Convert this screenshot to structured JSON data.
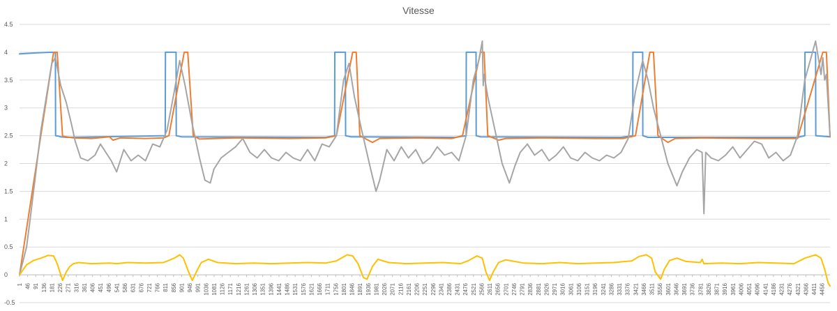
{
  "chart_data": {
    "type": "line",
    "title": "Vitesse",
    "xlabel": "",
    "ylabel": "",
    "ylim": [
      -0.5,
      4.5
    ],
    "xlim": [
      1,
      4500
    ],
    "y_ticks": [
      "-0.5",
      "0",
      "0.5",
      "1",
      "1.5",
      "2",
      "2.5",
      "3",
      "3.5",
      "4",
      "4.5"
    ],
    "x_ticks": [
      "1",
      "46",
      "91",
      "136",
      "181",
      "226",
      "271",
      "316",
      "361",
      "406",
      "451",
      "496",
      "541",
      "586",
      "631",
      "676",
      "721",
      "766",
      "811",
      "856",
      "901",
      "946",
      "991",
      "1036",
      "1081",
      "1126",
      "1171",
      "1216",
      "1261",
      "1306",
      "1351",
      "1396",
      "1441",
      "1486",
      "1531",
      "1576",
      "1621",
      "1666",
      "1711",
      "1756",
      "1801",
      "1846",
      "1891",
      "1936",
      "1981",
      "2026",
      "2071",
      "2116",
      "2161",
      "2206",
      "2251",
      "2296",
      "2341",
      "2386",
      "2431",
      "2476",
      "2521",
      "2566",
      "2611",
      "2656",
      "2701",
      "2746",
      "2791",
      "2836",
      "2881",
      "2926",
      "2971",
      "3016",
      "3061",
      "3106",
      "3151",
      "3196",
      "3241",
      "3286",
      "3331",
      "3376",
      "3421",
      "3466",
      "3511",
      "3556",
      "3601",
      "3646",
      "3691",
      "3736",
      "3781",
      "3826",
      "3871",
      "3916",
      "3961",
      "4006",
      "4051",
      "4096",
      "4141",
      "4186",
      "4231",
      "4276",
      "4321",
      "4366",
      "4411",
      "4456"
    ],
    "grid": true,
    "legend": "none",
    "series": [
      {
        "color": "#5b9bd5",
        "x": [
          1,
          100,
          180,
          200,
          201,
          220,
          230,
          260,
          810,
          811,
          870,
          871,
          900,
          1700,
          1750,
          1751,
          1810,
          1811,
          1840,
          2420,
          2480,
          2481,
          2535,
          2536,
          2560,
          3340,
          3405,
          3406,
          3460,
          3461,
          3490,
          4320,
          4360,
          4361,
          4420,
          4421,
          4500
        ],
        "y": [
          3.97,
          3.99,
          4.0,
          3.99,
          2.5,
          2.49,
          2.48,
          2.47,
          2.5,
          4.0,
          4.0,
          2.5,
          2.48,
          2.47,
          2.5,
          4.0,
          4.0,
          2.5,
          2.48,
          2.47,
          2.5,
          4.0,
          4.0,
          2.5,
          2.48,
          2.47,
          2.5,
          4.0,
          4.0,
          2.5,
          2.47,
          2.47,
          2.5,
          4.0,
          4.0,
          2.5,
          2.48
        ]
      },
      {
        "color": "#ed7d31",
        "x": [
          1,
          190,
          210,
          240,
          300,
          400,
          500,
          520,
          560,
          700,
          800,
          830,
          915,
          935,
          965,
          1000,
          1200,
          1500,
          1700,
          1760,
          1850,
          1870,
          1890,
          1960,
          2000,
          2200,
          2400,
          2460,
          2560,
          2580,
          2600,
          2660,
          2700,
          2900,
          3200,
          3350,
          3420,
          3500,
          3520,
          3545,
          3600,
          3640,
          3800,
          4100,
          4320,
          4460,
          4480,
          4500
        ],
        "y": [
          0,
          4.0,
          4.0,
          2.49,
          2.46,
          2.45,
          2.48,
          2.42,
          2.46,
          2.45,
          2.46,
          2.5,
          4.0,
          4.0,
          2.5,
          2.44,
          2.46,
          2.45,
          2.46,
          2.5,
          4.0,
          4.0,
          2.5,
          2.38,
          2.45,
          2.46,
          2.45,
          2.5,
          4.0,
          4.0,
          2.5,
          2.42,
          2.45,
          2.46,
          2.45,
          2.45,
          2.5,
          4.0,
          4.0,
          2.5,
          2.38,
          2.45,
          2.46,
          2.45,
          2.45,
          4.0,
          4.0,
          2.48
        ]
      },
      {
        "color": "#a5a5a5",
        "x": [
          1,
          40,
          60,
          90,
          120,
          150,
          180,
          200,
          230,
          260,
          290,
          310,
          340,
          380,
          420,
          450,
          480,
          510,
          540,
          580,
          620,
          660,
          700,
          740,
          780,
          820,
          860,
          890,
          920,
          960,
          1000,
          1030,
          1060,
          1080,
          1120,
          1160,
          1200,
          1240,
          1280,
          1320,
          1360,
          1400,
          1440,
          1480,
          1520,
          1560,
          1600,
          1640,
          1680,
          1720,
          1760,
          1800,
          1830,
          1860,
          1900,
          1950,
          1980,
          2000,
          2040,
          2080,
          2120,
          2160,
          2200,
          2240,
          2280,
          2320,
          2360,
          2400,
          2440,
          2480,
          2520,
          2550,
          2570,
          2575,
          2580,
          2600,
          2640,
          2680,
          2720,
          2750,
          2780,
          2820,
          2860,
          2900,
          2940,
          2980,
          3020,
          3060,
          3100,
          3140,
          3180,
          3220,
          3260,
          3300,
          3340,
          3380,
          3420,
          3460,
          3490,
          3520,
          3560,
          3600,
          3650,
          3680,
          3720,
          3760,
          3790,
          3800,
          3810,
          3840,
          3880,
          3920,
          3960,
          4000,
          4040,
          4080,
          4120,
          4160,
          4200,
          4240,
          4280,
          4320,
          4360,
          4390,
          4420,
          4450,
          4460,
          4470,
          4480,
          4500
        ],
        "y": [
          0,
          0.5,
          1.0,
          1.8,
          2.6,
          3.2,
          3.8,
          3.9,
          3.4,
          3.1,
          2.7,
          2.4,
          2.1,
          2.05,
          2.15,
          2.35,
          2.2,
          2.05,
          1.85,
          2.25,
          2.05,
          2.15,
          2.05,
          2.35,
          2.3,
          2.6,
          3.3,
          3.85,
          3.4,
          2.7,
          2.1,
          1.7,
          1.65,
          1.9,
          2.1,
          2.2,
          2.3,
          2.45,
          2.2,
          2.1,
          2.25,
          2.1,
          2.05,
          2.2,
          2.1,
          2.05,
          2.25,
          2.05,
          2.35,
          2.3,
          2.5,
          3.5,
          3.8,
          3.2,
          2.6,
          1.9,
          1.5,
          1.7,
          2.25,
          2.05,
          2.3,
          2.1,
          2.25,
          2.0,
          2.1,
          2.3,
          2.15,
          2.2,
          2.05,
          2.5,
          3.5,
          3.85,
          4.2,
          3.4,
          3.6,
          3.2,
          2.6,
          2.0,
          1.65,
          1.95,
          2.2,
          2.35,
          2.15,
          2.25,
          2.05,
          2.15,
          2.3,
          2.1,
          2.05,
          2.2,
          2.1,
          2.05,
          2.15,
          2.1,
          2.2,
          2.45,
          3.3,
          3.85,
          3.5,
          3.0,
          2.5,
          2.0,
          1.6,
          1.85,
          2.1,
          2.25,
          2.2,
          1.1,
          2.2,
          2.1,
          2.05,
          2.15,
          2.3,
          2.1,
          2.25,
          2.4,
          2.35,
          2.1,
          2.2,
          2.05,
          2.15,
          2.5,
          3.5,
          3.85,
          4.2,
          3.6,
          3.9,
          3.5,
          3.6,
          2.5
        ]
      },
      {
        "color": "#ffc000",
        "x": [
          1,
          40,
          80,
          120,
          160,
          190,
          210,
          240,
          260,
          280,
          300,
          330,
          400,
          500,
          540,
          600,
          700,
          800,
          860,
          890,
          910,
          940,
          960,
          990,
          1010,
          1050,
          1100,
          1200,
          1300,
          1400,
          1500,
          1600,
          1700,
          1760,
          1820,
          1850,
          1880,
          1910,
          1930,
          1960,
          1990,
          2050,
          2150,
          2250,
          2350,
          2450,
          2490,
          2540,
          2570,
          2590,
          2610,
          2630,
          2660,
          2700,
          2800,
          2900,
          3000,
          3100,
          3200,
          3300,
          3400,
          3440,
          3480,
          3510,
          3530,
          3560,
          3580,
          3610,
          3650,
          3700,
          3780,
          3790,
          3800,
          3900,
          4000,
          4100,
          4200,
          4300,
          4360,
          4420,
          4450,
          4470,
          4490,
          4500
        ],
        "y": [
          0,
          0.18,
          0.26,
          0.3,
          0.35,
          0.34,
          0.2,
          -0.1,
          0.05,
          0.15,
          0.2,
          0.22,
          0.2,
          0.21,
          0.2,
          0.22,
          0.21,
          0.22,
          0.3,
          0.36,
          0.3,
          0.05,
          -0.1,
          0.1,
          0.22,
          0.28,
          0.22,
          0.2,
          0.21,
          0.2,
          0.21,
          0.22,
          0.21,
          0.25,
          0.36,
          0.34,
          0.2,
          -0.05,
          -0.08,
          0.15,
          0.28,
          0.22,
          0.2,
          0.21,
          0.22,
          0.2,
          0.25,
          0.34,
          0.3,
          0.05,
          -0.1,
          0.05,
          0.22,
          0.27,
          0.21,
          0.2,
          0.22,
          0.2,
          0.21,
          0.22,
          0.25,
          0.33,
          0.36,
          0.3,
          0.05,
          -0.08,
          0.1,
          0.26,
          0.3,
          0.24,
          0.22,
          0.28,
          0.2,
          0.21,
          0.2,
          0.22,
          0.21,
          0.2,
          0.3,
          0.36,
          0.3,
          0.1,
          -0.15,
          -0.2
        ]
      }
    ]
  }
}
